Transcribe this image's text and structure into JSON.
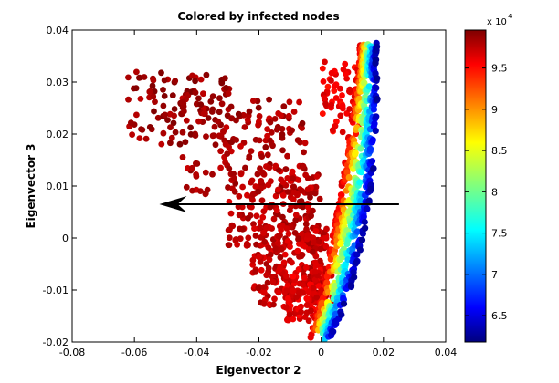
{
  "chart_data": {
    "type": "scatter",
    "title": "Colored by infected nodes",
    "xlabel": "Eigenvector 2",
    "ylabel": "Eigenvector 3",
    "xlim": [
      -0.08,
      0.04
    ],
    "ylim": [
      -0.02,
      0.04
    ],
    "x_ticks": [
      "-0.08",
      "-0.06",
      "-0.04",
      "-0.02",
      "0",
      "0.02",
      "0.04"
    ],
    "y_ticks": [
      "-0.02",
      "-0.01",
      "0",
      "0.01",
      "0.02",
      "0.03",
      "0.04"
    ],
    "grid": false,
    "colormap": "jet",
    "colorbar": {
      "range": [
        61800,
        99600
      ],
      "ticks": [
        "6.5",
        "7",
        "7.5",
        "8",
        "8.5",
        "9",
        "9.5"
      ],
      "multiplier": "x 10",
      "exponent": "4"
    },
    "arrow": {
      "from": [
        0.025,
        0.0065
      ],
      "to": [
        -0.052,
        0.0065
      ],
      "color": "#000000"
    },
    "cloud_clusters": [
      {
        "x_range": [
          -0.062,
          -0.028
        ],
        "y_range": [
          0.018,
          0.032
        ],
        "value": 98500,
        "count": 110
      },
      {
        "x_range": [
          -0.045,
          -0.005
        ],
        "y_range": [
          0.008,
          0.027
        ],
        "value": 98000,
        "count": 150
      },
      {
        "x_range": [
          -0.03,
          0.0
        ],
        "y_range": [
          -0.002,
          0.014
        ],
        "value": 97500,
        "count": 170
      },
      {
        "x_range": [
          -0.022,
          0.002
        ],
        "y_range": [
          -0.013,
          0.003
        ],
        "value": 97000,
        "count": 240
      },
      {
        "x_range": [
          -0.012,
          0.004
        ],
        "y_range": [
          -0.016,
          -0.006
        ],
        "value": 96000,
        "count": 120
      },
      {
        "x_range": [
          0.0,
          0.012
        ],
        "y_range": [
          0.02,
          0.034
        ],
        "value": 95500,
        "count": 60
      }
    ],
    "gradient_band": {
      "path": [
        [
          0.0,
          -0.019
        ],
        [
          0.004,
          -0.01
        ],
        [
          0.007,
          0.0
        ],
        [
          0.01,
          0.01
        ],
        [
          0.013,
          0.022
        ],
        [
          0.015,
          0.031
        ],
        [
          0.016,
          0.037
        ]
      ],
      "value_inner": 96500,
      "value_outer": 62500,
      "band_width": 0.01,
      "count": 700
    }
  }
}
